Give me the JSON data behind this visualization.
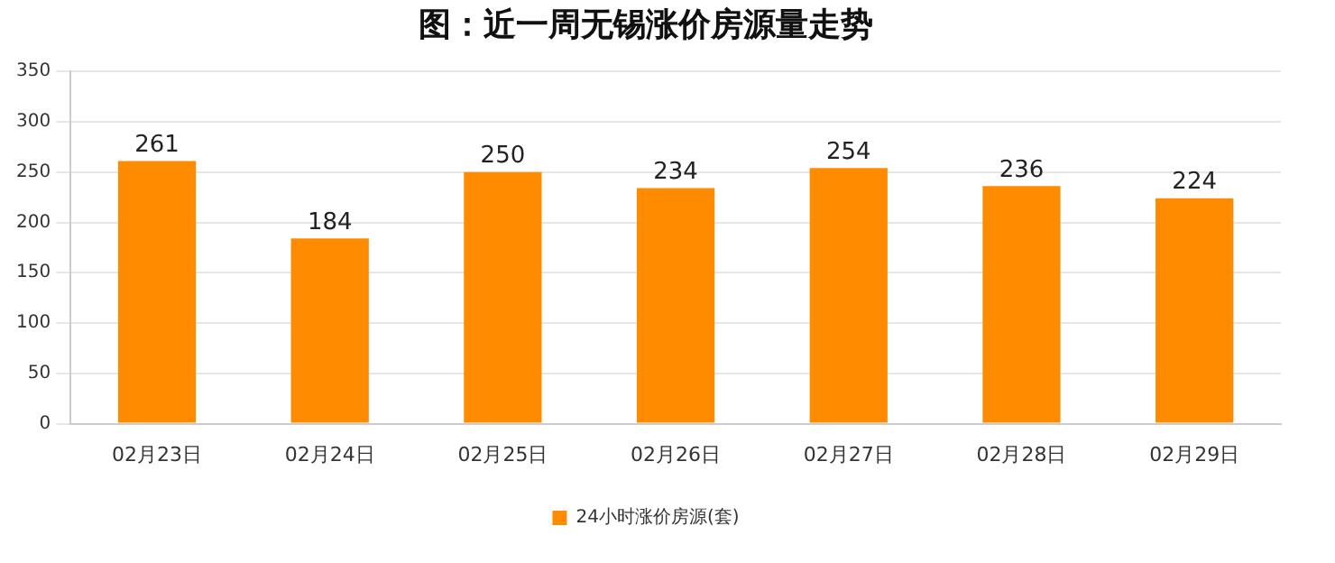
{
  "chart_data": {
    "type": "bar",
    "title": "图：近一周无锡涨价房源量走势",
    "categories": [
      "02月23日",
      "02月24日",
      "02月25日",
      "02月26日",
      "02月27日",
      "02月28日",
      "02月29日"
    ],
    "series": [
      {
        "name": "24小时涨价房源(套)",
        "color": "#ff8c00",
        "values": [
          261,
          184,
          250,
          234,
          254,
          236,
          224
        ]
      }
    ],
    "ylim": [
      0,
      350
    ],
    "yticks": [
      0,
      50,
      100,
      150,
      200,
      250,
      300,
      350
    ],
    "grid": "y",
    "legend": "bottom",
    "data_labels": true
  }
}
